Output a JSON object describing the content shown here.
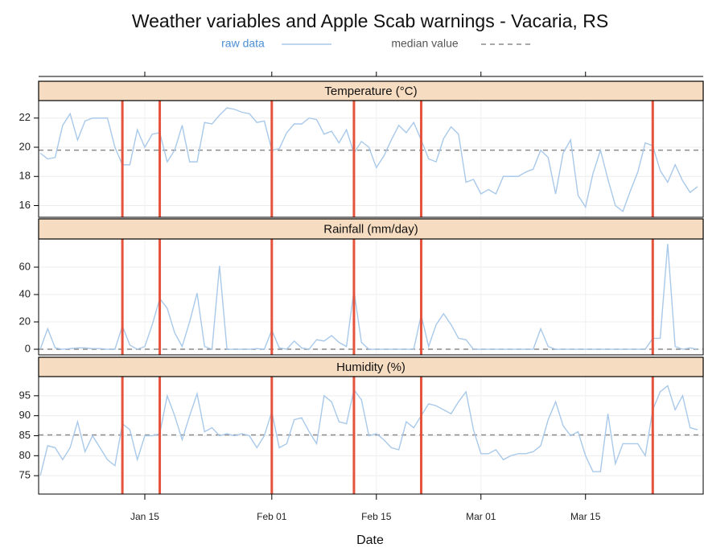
{
  "chart_data": {
    "type": "line",
    "title": "Weather variables and Apple Scab warnings - Vacaria, RS",
    "x_label": "Date",
    "series": [
      {
        "name": "raw data",
        "color": "#a9c9ea",
        "label_color": "#4d8fd4",
        "dash": false
      },
      {
        "name": "median value",
        "color": "#8c8c8c",
        "label_color": "#555555",
        "dash": true
      }
    ],
    "warning_color": "#e5533d",
    "grid": true,
    "x": [
      "Jan 01",
      "Jan 02",
      "Jan 03",
      "Jan 04",
      "Jan 05",
      "Jan 06",
      "Jan 07",
      "Jan 08",
      "Jan 09",
      "Jan 10",
      "Jan 11",
      "Jan 12",
      "Jan 13",
      "Jan 14",
      "Jan 15",
      "Jan 16",
      "Jan 17",
      "Jan 18",
      "Jan 19",
      "Jan 20",
      "Jan 21",
      "Jan 22",
      "Jan 23",
      "Jan 24",
      "Jan 25",
      "Jan 26",
      "Jan 27",
      "Jan 28",
      "Jan 29",
      "Jan 30",
      "Jan 31",
      "Feb 01",
      "Feb 02",
      "Feb 03",
      "Feb 04",
      "Feb 05",
      "Feb 06",
      "Feb 07",
      "Feb 08",
      "Feb 09",
      "Feb 10",
      "Feb 11",
      "Feb 12",
      "Feb 13",
      "Feb 14",
      "Feb 15",
      "Feb 16",
      "Feb 17",
      "Feb 18",
      "Feb 19",
      "Feb 20",
      "Feb 21",
      "Feb 22",
      "Feb 23",
      "Feb 24",
      "Feb 25",
      "Feb 26",
      "Feb 27",
      "Feb 28",
      "Mar 01",
      "Mar 02",
      "Mar 03",
      "Mar 04",
      "Mar 05",
      "Mar 06",
      "Mar 07",
      "Mar 08",
      "Mar 09",
      "Mar 10",
      "Mar 11",
      "Mar 12",
      "Mar 13",
      "Mar 14",
      "Mar 15",
      "Mar 16",
      "Mar 17",
      "Mar 18",
      "Mar 19",
      "Mar 20",
      "Mar 21",
      "Mar 22",
      "Mar 23",
      "Mar 24",
      "Mar 25",
      "Mar 26",
      "Mar 27",
      "Mar 28",
      "Mar 29",
      "Mar 30"
    ],
    "xlim": [
      "Jan 01",
      "Mar 30"
    ],
    "xticks": [
      "Jan 15",
      "Feb 01",
      "Feb 15",
      "Mar 01",
      "Mar 15"
    ],
    "warnings": [
      "Jan 12",
      "Jan 17",
      "Feb 01",
      "Feb 12",
      "Feb 21",
      "Mar 24"
    ],
    "panels": [
      {
        "title": "Temperature (°C)",
        "ylim": [
          15.2,
          23.2
        ],
        "yticks": [
          16,
          18,
          20,
          22
        ],
        "median": 19.8,
        "values": [
          19.6,
          19.2,
          19.3,
          21.5,
          22.3,
          20.5,
          21.8,
          22.0,
          22.0,
          22.0,
          20.0,
          18.8,
          18.8,
          21.2,
          20.0,
          20.9,
          21.0,
          19.0,
          19.8,
          21.5,
          19.0,
          19.0,
          21.7,
          21.6,
          22.2,
          22.7,
          22.6,
          22.4,
          22.3,
          21.7,
          21.8,
          19.8,
          19.9,
          21.0,
          21.6,
          21.6,
          22.0,
          21.9,
          20.9,
          21.1,
          20.3,
          21.2,
          19.6,
          20.4,
          20.0,
          18.6,
          19.4,
          20.5,
          21.5,
          21.0,
          21.7,
          20.5,
          19.2,
          19.0,
          20.6,
          21.4,
          20.9,
          17.6,
          17.8,
          16.8,
          17.1,
          16.8,
          18.0,
          18.0,
          18.0,
          18.3,
          18.5,
          19.8,
          19.3,
          16.8,
          19.6,
          20.5,
          16.7,
          15.9,
          18.2,
          19.8,
          17.8,
          16.0,
          15.6,
          17.0,
          18.3,
          20.3,
          20.1,
          18.4,
          17.6,
          18.8,
          17.7,
          16.9,
          17.3
        ]
      },
      {
        "title": "Rainfall (mm/day)",
        "ylim": [
          -4.1,
          80.6
        ],
        "yticks": [
          0,
          20,
          40,
          60
        ],
        "median": 0,
        "values": [
          0,
          15,
          1,
          0,
          0.5,
          1,
          1,
          0.5,
          0.5,
          0,
          0,
          17,
          3,
          0,
          2,
          18,
          37,
          30,
          12,
          2,
          20,
          41,
          2,
          0,
          61,
          0,
          0,
          0,
          0,
          0.5,
          0,
          14,
          1,
          0,
          6,
          1,
          0,
          7,
          6,
          10,
          5,
          2,
          43,
          5,
          0,
          0,
          0,
          0,
          0,
          0,
          0,
          25,
          2,
          18,
          26,
          18,
          8,
          7,
          0,
          0,
          0,
          0,
          0,
          0,
          0,
          0,
          0,
          15,
          2,
          0,
          0,
          0,
          0,
          0,
          0,
          0,
          0,
          0,
          0,
          0,
          0,
          0,
          8,
          8,
          77,
          2,
          0,
          1,
          0
        ]
      },
      {
        "title": "Humidity (%)",
        "ylim": [
          70.4,
          99.8
        ],
        "yticks": [
          75,
          80,
          85,
          90,
          95
        ],
        "median": 85.2,
        "values": [
          75,
          82.5,
          82,
          79,
          82,
          88.5,
          81,
          85,
          82,
          79,
          77.5,
          88,
          86.5,
          79,
          85,
          85,
          85.5,
          95,
          90,
          84,
          90,
          95.5,
          86,
          87,
          85,
          85.5,
          85,
          85.5,
          85,
          82,
          85,
          91,
          82,
          83,
          89,
          89.5,
          86,
          83,
          95,
          93.5,
          88.5,
          88,
          96.5,
          94,
          85,
          85.5,
          84,
          82,
          81.5,
          88.5,
          87,
          90,
          93,
          92.5,
          91.5,
          90.5,
          93.5,
          96,
          86.5,
          80.5,
          80.5,
          81.5,
          79,
          80,
          80.5,
          80.5,
          81,
          82.5,
          89,
          93.5,
          87.5,
          85,
          86,
          80,
          76,
          76,
          90.5,
          78,
          83,
          83,
          83,
          80,
          91.5,
          96,
          97.5,
          91.5,
          95,
          87,
          86.5
        ]
      }
    ]
  }
}
